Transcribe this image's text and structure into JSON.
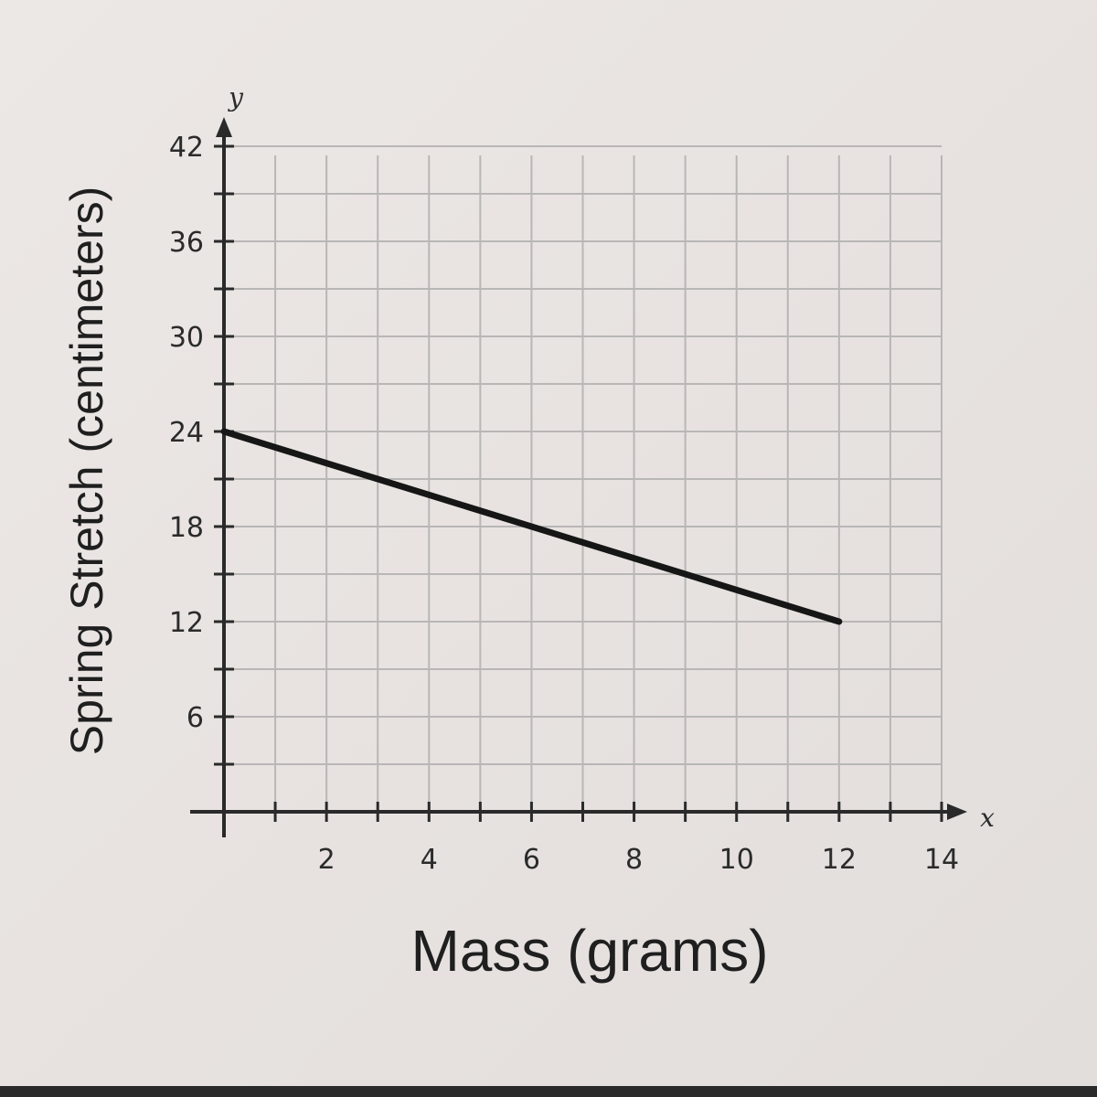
{
  "chart_data": {
    "type": "line",
    "xlabel": "Mass (grams)",
    "ylabel": "Spring Stretch (centimeters)",
    "x_axis_var": "x",
    "y_axis_var": "y",
    "xlim": [
      0,
      14
    ],
    "ylim": [
      0,
      42
    ],
    "x_ticks": [
      2,
      4,
      6,
      8,
      10,
      12,
      14
    ],
    "y_ticks": [
      6,
      12,
      18,
      24,
      30,
      36,
      42
    ],
    "grid": true,
    "series": [
      {
        "points": [
          [
            0,
            24
          ],
          [
            12,
            12
          ]
        ]
      }
    ]
  },
  "colors": {
    "grid": "#b9b6b6",
    "axis": "#2a2a2a",
    "line": "#161616",
    "text": "#2b2b2b"
  }
}
